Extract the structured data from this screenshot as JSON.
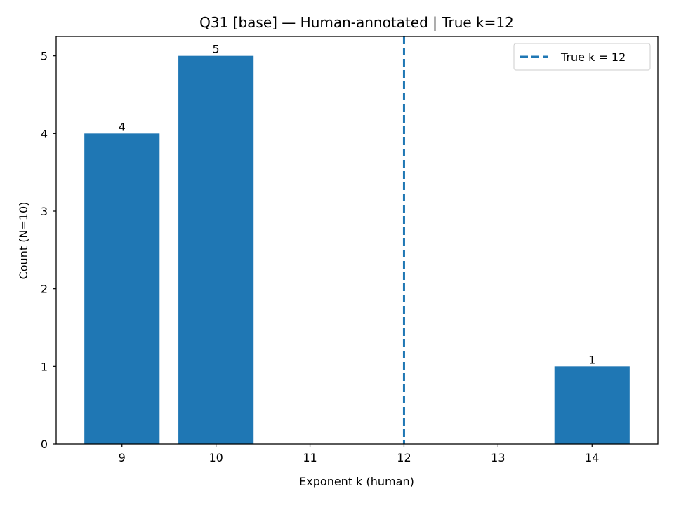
{
  "chart_data": {
    "type": "bar",
    "title": "Q31 [base] — Human-annotated | True k=12",
    "xlabel": "Exponent k (human)",
    "ylabel": "Count (N=10)",
    "x": [
      9,
      10,
      14
    ],
    "values": [
      4,
      5,
      1
    ],
    "data_labels": [
      "4",
      "5",
      "1"
    ],
    "xlim": [
      8.3,
      14.7
    ],
    "ylim": [
      0,
      5.25
    ],
    "xticks": [
      9,
      10,
      11,
      12,
      13,
      14
    ],
    "yticks": [
      0,
      1,
      2,
      3,
      4,
      5
    ],
    "bar_width": 0.8,
    "reference_line": {
      "x": 12,
      "style": "dashed",
      "label": "True k = 12"
    },
    "legend": {
      "placement": "top-right",
      "entries": [
        "True k = 12"
      ]
    },
    "grid": false,
    "colors": {
      "bar": "#1f77b4",
      "reference_line": "#1f77b4"
    }
  }
}
